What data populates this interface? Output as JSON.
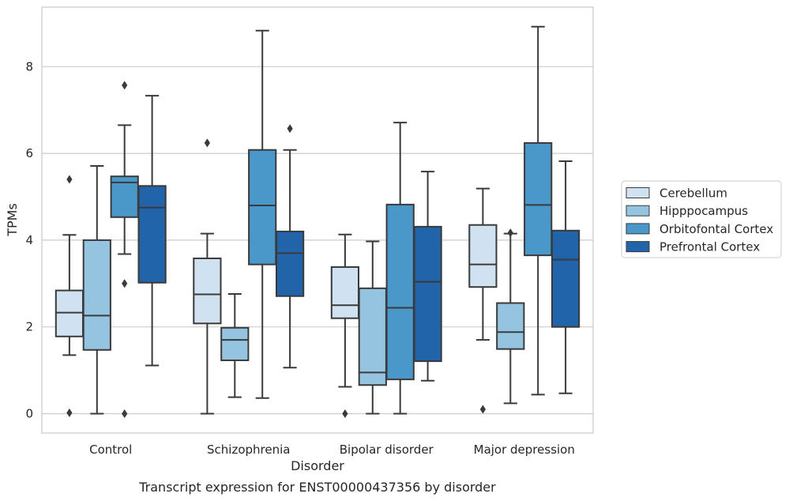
{
  "chart_data": {
    "type": "box",
    "title": "",
    "caption": "Transcript expression for ENST00000437356 by disorder",
    "xlabel": "Disorder",
    "ylabel": "TPMs",
    "ylim": [
      -0.42,
      9.4
    ],
    "yticks": [
      0,
      2,
      4,
      6,
      8
    ],
    "grid": "horizontal",
    "legend_position": "right",
    "categories": [
      "Control",
      "Schizophrenia",
      "Bipolar disorder",
      "Major depression"
    ],
    "series": [
      {
        "name": "Cerebellum",
        "color": "#d0e1f2",
        "boxes": [
          {
            "whisker_low": 1.35,
            "q1": 1.78,
            "median": 2.33,
            "q3": 2.84,
            "whisker_high": 4.12,
            "outliers": [
              0.02,
              5.4
            ]
          },
          {
            "whisker_low": 0.0,
            "q1": 2.08,
            "median": 2.75,
            "q3": 3.58,
            "whisker_high": 4.15,
            "outliers": [
              6.24
            ]
          },
          {
            "whisker_low": 0.62,
            "q1": 2.2,
            "median": 2.5,
            "q3": 3.38,
            "whisker_high": 4.13,
            "outliers": [
              0.0
            ]
          },
          {
            "whisker_low": 1.7,
            "q1": 2.92,
            "median": 3.44,
            "q3": 4.35,
            "whisker_high": 5.19,
            "outliers": [
              0.1
            ]
          }
        ]
      },
      {
        "name": "Hipppocampus",
        "color": "#94c4df",
        "boxes": [
          {
            "whisker_low": 0.0,
            "q1": 1.47,
            "median": 2.26,
            "q3": 4.0,
            "whisker_high": 5.71,
            "outliers": []
          },
          {
            "whisker_low": 0.38,
            "q1": 1.23,
            "median": 1.7,
            "q3": 1.98,
            "whisker_high": 2.76,
            "outliers": []
          },
          {
            "whisker_low": 0.0,
            "q1": 0.66,
            "median": 0.95,
            "q3": 2.89,
            "whisker_high": 3.97,
            "outliers": []
          },
          {
            "whisker_low": 0.24,
            "q1": 1.49,
            "median": 1.88,
            "q3": 2.55,
            "whisker_high": 4.15,
            "outliers": [
              4.17
            ]
          }
        ]
      },
      {
        "name": "Orbitofontal Cortex",
        "color": "#4a98c9",
        "boxes": [
          {
            "whisker_low": 3.68,
            "q1": 4.53,
            "median": 5.33,
            "q3": 5.47,
            "whisker_high": 6.65,
            "outliers": [
              0.0,
              3.0,
              7.57
            ]
          },
          {
            "whisker_low": 0.36,
            "q1": 3.44,
            "median": 4.8,
            "q3": 6.08,
            "whisker_high": 8.83,
            "outliers": []
          },
          {
            "whisker_low": 0.0,
            "q1": 0.79,
            "median": 2.44,
            "q3": 4.82,
            "whisker_high": 6.71,
            "outliers": []
          },
          {
            "whisker_low": 0.44,
            "q1": 3.65,
            "median": 4.81,
            "q3": 6.24,
            "whisker_high": 8.92,
            "outliers": []
          }
        ]
      },
      {
        "name": "Prefrontal Cortex",
        "color": "#2264aa",
        "boxes": [
          {
            "whisker_low": 1.11,
            "q1": 3.02,
            "median": 4.75,
            "q3": 5.25,
            "whisker_high": 7.33,
            "outliers": []
          },
          {
            "whisker_low": 1.06,
            "q1": 2.71,
            "median": 3.7,
            "q3": 4.2,
            "whisker_high": 6.08,
            "outliers": [
              6.57
            ]
          },
          {
            "whisker_low": 0.76,
            "q1": 1.21,
            "median": 3.04,
            "q3": 4.31,
            "whisker_high": 5.58,
            "outliers": []
          },
          {
            "whisker_low": 0.47,
            "q1": 2.0,
            "median": 3.55,
            "q3": 4.22,
            "whisker_high": 5.82,
            "outliers": []
          }
        ]
      }
    ]
  }
}
